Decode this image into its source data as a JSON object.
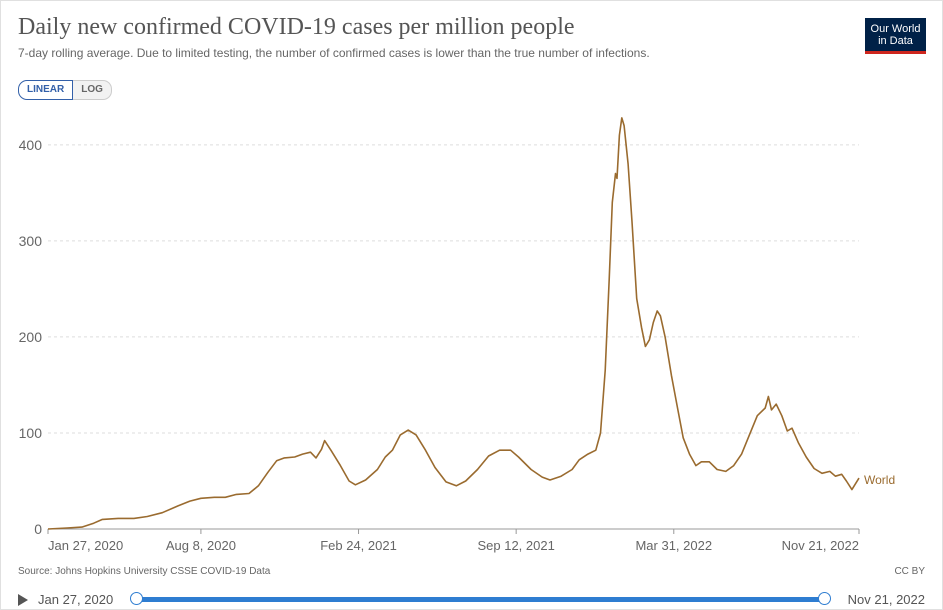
{
  "header": {
    "title": "Daily new confirmed COVID-19 cases per million people",
    "subtitle": "7-day rolling average. Due to limited testing, the number of confirmed cases is lower than the true number of infections.",
    "logo_line1": "Our World",
    "logo_line2": "in Data"
  },
  "scale_toggle": {
    "linear": "LINEAR",
    "log": "LOG",
    "selected": "LINEAR"
  },
  "footer": {
    "source": "Source: Johns Hopkins University CSSE COVID-19 Data",
    "license": "CC BY"
  },
  "timeline": {
    "start_label": "Jan 27, 2020",
    "end_label": "Nov 21, 2022"
  },
  "colors": {
    "series": "#9a6b2f",
    "grid": "#dddddd",
    "timeline": "#2e7dd1"
  },
  "chart_data": {
    "type": "line",
    "title": "Daily new confirmed COVID-19 cases per million people",
    "xlabel": "",
    "ylabel": "",
    "ylim": [
      0,
      430
    ],
    "xlim": [
      "2020-01-27",
      "2022-11-21"
    ],
    "yticks": [
      0,
      100,
      200,
      300,
      400
    ],
    "xticks": [
      {
        "date": "2020-01-27",
        "label": "Jan 27, 2020"
      },
      {
        "date": "2020-08-08",
        "label": "Aug 8, 2020"
      },
      {
        "date": "2021-02-24",
        "label": "Feb 24, 2021"
      },
      {
        "date": "2021-09-12",
        "label": "Sep 12, 2021"
      },
      {
        "date": "2022-03-31",
        "label": "Mar 31, 2022"
      },
      {
        "date": "2022-11-21",
        "label": "Nov 21, 2022"
      }
    ],
    "grid": true,
    "series": [
      {
        "name": "World",
        "points": [
          [
            "2020-01-27",
            0
          ],
          [
            "2020-02-20",
            1
          ],
          [
            "2020-03-10",
            2
          ],
          [
            "2020-03-25",
            6
          ],
          [
            "2020-04-05",
            10
          ],
          [
            "2020-04-25",
            11
          ],
          [
            "2020-05-15",
            11
          ],
          [
            "2020-06-01",
            13
          ],
          [
            "2020-06-20",
            17
          ],
          [
            "2020-07-10",
            24
          ],
          [
            "2020-07-25",
            29
          ],
          [
            "2020-08-08",
            32
          ],
          [
            "2020-08-25",
            33
          ],
          [
            "2020-09-08",
            33
          ],
          [
            "2020-09-22",
            36
          ],
          [
            "2020-10-08",
            37
          ],
          [
            "2020-10-20",
            45
          ],
          [
            "2020-11-01",
            59
          ],
          [
            "2020-11-12",
            71
          ],
          [
            "2020-11-22",
            74
          ],
          [
            "2020-12-05",
            75
          ],
          [
            "2020-12-15",
            78
          ],
          [
            "2020-12-25",
            80
          ],
          [
            "2021-01-01",
            74
          ],
          [
            "2021-01-08",
            83
          ],
          [
            "2021-01-12",
            92
          ],
          [
            "2021-01-20",
            82
          ],
          [
            "2021-02-01",
            66
          ],
          [
            "2021-02-12",
            50
          ],
          [
            "2021-02-20",
            46
          ],
          [
            "2021-03-05",
            51
          ],
          [
            "2021-03-20",
            62
          ],
          [
            "2021-03-30",
            75
          ],
          [
            "2021-04-08",
            82
          ],
          [
            "2021-04-18",
            98
          ],
          [
            "2021-04-28",
            103
          ],
          [
            "2021-05-08",
            98
          ],
          [
            "2021-05-20",
            82
          ],
          [
            "2021-06-01",
            64
          ],
          [
            "2021-06-15",
            49
          ],
          [
            "2021-06-28",
            45
          ],
          [
            "2021-07-10",
            50
          ],
          [
            "2021-07-25",
            62
          ],
          [
            "2021-08-08",
            76
          ],
          [
            "2021-08-22",
            82
          ],
          [
            "2021-09-05",
            82
          ],
          [
            "2021-09-15",
            75
          ],
          [
            "2021-10-01",
            62
          ],
          [
            "2021-10-15",
            54
          ],
          [
            "2021-10-25",
            51
          ],
          [
            "2021-11-08",
            55
          ],
          [
            "2021-11-22",
            62
          ],
          [
            "2021-12-01",
            72
          ],
          [
            "2021-12-12",
            78
          ],
          [
            "2021-12-22",
            82
          ],
          [
            "2021-12-28",
            100
          ],
          [
            "2022-01-03",
            165
          ],
          [
            "2022-01-08",
            260
          ],
          [
            "2022-01-12",
            340
          ],
          [
            "2022-01-16",
            370
          ],
          [
            "2022-01-18",
            365
          ],
          [
            "2022-01-21",
            410
          ],
          [
            "2022-01-24",
            428
          ],
          [
            "2022-01-27",
            420
          ],
          [
            "2022-02-01",
            380
          ],
          [
            "2022-02-06",
            320
          ],
          [
            "2022-02-12",
            240
          ],
          [
            "2022-02-18",
            210
          ],
          [
            "2022-02-23",
            190
          ],
          [
            "2022-02-28",
            197
          ],
          [
            "2022-03-05",
            215
          ],
          [
            "2022-03-10",
            227
          ],
          [
            "2022-03-14",
            222
          ],
          [
            "2022-03-20",
            200
          ],
          [
            "2022-03-28",
            160
          ],
          [
            "2022-04-05",
            125
          ],
          [
            "2022-04-12",
            95
          ],
          [
            "2022-04-20",
            78
          ],
          [
            "2022-04-28",
            66
          ],
          [
            "2022-05-05",
            70
          ],
          [
            "2022-05-15",
            70
          ],
          [
            "2022-05-25",
            62
          ],
          [
            "2022-06-05",
            60
          ],
          [
            "2022-06-15",
            66
          ],
          [
            "2022-06-25",
            78
          ],
          [
            "2022-07-05",
            98
          ],
          [
            "2022-07-15",
            118
          ],
          [
            "2022-07-25",
            126
          ],
          [
            "2022-07-29",
            138
          ],
          [
            "2022-08-02",
            124
          ],
          [
            "2022-08-08",
            130
          ],
          [
            "2022-08-15",
            118
          ],
          [
            "2022-08-22",
            102
          ],
          [
            "2022-08-28",
            105
          ],
          [
            "2022-09-05",
            90
          ],
          [
            "2022-09-15",
            75
          ],
          [
            "2022-09-25",
            63
          ],
          [
            "2022-10-05",
            58
          ],
          [
            "2022-10-15",
            60
          ],
          [
            "2022-10-22",
            55
          ],
          [
            "2022-10-30",
            57
          ],
          [
            "2022-11-05",
            50
          ],
          [
            "2022-11-12",
            41
          ],
          [
            "2022-11-21",
            53
          ]
        ]
      }
    ]
  }
}
